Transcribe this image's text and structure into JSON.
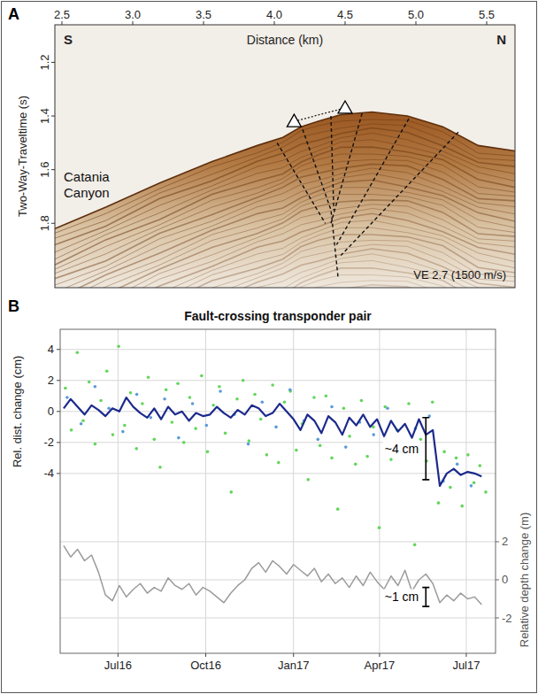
{
  "chart_data": [
    {
      "type": "image",
      "panel": "A",
      "x_label": "Distance (km)",
      "y_label": "Two-Way-Traveltime (s)",
      "xlim": [
        2.45,
        5.7
      ],
      "xticks": [
        2.5,
        {
          "value": 3,
          "label": "3.0"
        },
        3.5,
        {
          "value": 4,
          "label": "4.0"
        },
        4.5,
        {
          "value": 5,
          "label": "5.0"
        },
        5.5
      ],
      "ylim": [
        2.04,
        1.06
      ],
      "yticks": [
        1.2,
        1.4,
        1.6,
        1.8
      ],
      "seafloor": {
        "x": [
          2.45,
          2.81,
          3.19,
          3.56,
          3.88,
          4.06,
          4.19,
          4.31,
          4.47,
          4.69,
          4.94,
          5.19,
          5.44,
          5.7
        ],
        "y": [
          1.82,
          1.74,
          1.65,
          1.57,
          1.51,
          1.48,
          1.44,
          1.42,
          1.395,
          1.385,
          1.4,
          1.44,
          1.51,
          1.53
        ]
      },
      "faults": [
        {
          "x": [
            4.02,
            4.36
          ],
          "y": [
            1.5,
            1.8
          ]
        },
        {
          "x": [
            4.2,
            4.4,
            4.45
          ],
          "y": [
            1.45,
            1.75,
            2.0
          ]
        },
        {
          "x": [
            4.4,
            4.42
          ],
          "y": [
            1.4,
            1.75
          ]
        },
        {
          "x": [
            4.62,
            4.4
          ],
          "y": [
            1.39,
            1.8
          ]
        },
        {
          "x": [
            4.95,
            4.44
          ],
          "y": [
            1.41,
            1.88
          ]
        },
        {
          "x": [
            5.3,
            4.47
          ],
          "y": [
            1.46,
            1.92
          ]
        }
      ],
      "transponders": {
        "x": [
          4.14,
          4.5
        ],
        "y": [
          1.42,
          1.37
        ]
      },
      "labels": {
        "south": "S",
        "north": "N",
        "place": "Catania Canyon",
        "note": "VE 2.7 (1500 m/s)"
      }
    },
    {
      "type": "line",
      "panel": "B",
      "title": "Fault-crossing transponder pair",
      "y_label": "Rel. dist. change (cm)",
      "y2_label": "Relative depth change (m)",
      "xlim": [
        2016.33,
        2017.58
      ],
      "xticks": [
        {
          "value": 2016.496,
          "label": "Jul16"
        },
        {
          "value": 2016.748,
          "label": "Oct16"
        },
        {
          "value": 2017.0,
          "label": "Jan17"
        },
        {
          "value": 2017.247,
          "label": "Apr17"
        },
        {
          "value": 2017.496,
          "label": "Jul17"
        }
      ],
      "ylim": [
        -15.6,
        5.3
      ],
      "yticks": [
        -4,
        -2,
        0,
        2,
        4
      ],
      "y2lim": [
        -3.86,
        13.16
      ],
      "y2ticks": [
        -2,
        0,
        2
      ],
      "grid": true,
      "x": [
        2016.34,
        2016.36,
        2016.38,
        2016.4,
        2016.42,
        2016.44,
        2016.46,
        2016.48,
        2016.5,
        2016.52,
        2016.54,
        2016.56,
        2016.58,
        2016.6,
        2016.62,
        2016.64,
        2016.66,
        2016.68,
        2016.7,
        2016.72,
        2016.74,
        2016.76,
        2016.78,
        2016.8,
        2016.82,
        2016.84,
        2016.86,
        2016.88,
        2016.9,
        2016.92,
        2016.94,
        2016.96,
        2016.98,
        2017.0,
        2017.02,
        2017.04,
        2017.06,
        2017.08,
        2017.1,
        2017.12,
        2017.14,
        2017.16,
        2017.18,
        2017.2,
        2017.22,
        2017.24,
        2017.26,
        2017.28,
        2017.3,
        2017.32,
        2017.34,
        2017.36,
        2017.38,
        2017.4,
        2017.42,
        2017.44,
        2017.46,
        2017.48,
        2017.5,
        2017.52,
        2017.54
      ],
      "series": [
        {
          "type": "scatter",
          "color": "#62d65a",
          "marker": "dot",
          "x": [
            2016.345,
            2016.362,
            2016.379,
            2016.396,
            2016.413,
            2016.43,
            2016.447,
            2016.464,
            2016.481,
            2016.498,
            2016.515,
            2016.532,
            2016.549,
            2016.566,
            2016.583,
            2016.6,
            2016.617,
            2016.634,
            2016.651,
            2016.668,
            2016.685,
            2016.702,
            2016.719,
            2016.736,
            2016.753,
            2016.77,
            2016.787,
            2016.804,
            2016.821,
            2016.838,
            2016.855,
            2016.872,
            2016.889,
            2016.906,
            2016.923,
            2016.94,
            2016.957,
            2016.974,
            2016.991,
            2017.008,
            2017.025,
            2017.042,
            2017.059,
            2017.076,
            2017.093,
            2017.11,
            2017.127,
            2017.144,
            2017.161,
            2017.178,
            2017.195,
            2017.212,
            2017.229,
            2017.246,
            2017.263,
            2017.28,
            2017.297,
            2017.314,
            2017.331,
            2017.348,
            2017.365,
            2017.382,
            2017.399,
            2017.416,
            2017.433,
            2017.45,
            2017.467,
            2017.484,
            2017.501,
            2017.518,
            2017.535,
            2017.552
          ],
          "values": [
            1.5,
            -1.2,
            3.8,
            -0.6,
            1.9,
            -2.1,
            0.7,
            2.6,
            -1.5,
            4.2,
            -0.9,
            1.2,
            -2.4,
            0.5,
            2.2,
            -1.8,
            -3.6,
            1.4,
            -0.7,
            1.8,
            -2.0,
            0.9,
            -1.1,
            2.3,
            -2.6,
            0.4,
            1.6,
            -1.4,
            -5.2,
            0.8,
            2.0,
            -1.9,
            1.1,
            -0.5,
            -2.8,
            1.7,
            -3.3,
            0.6,
            1.3,
            -2.5,
            -0.8,
            -4.4,
            0.9,
            -2.2,
            1.0,
            -3.0,
            -6.3,
            0.2,
            -1.6,
            -3.4,
            0.7,
            -2.9,
            -1.0,
            -7.5,
            0.3,
            -3.1,
            -1.2,
            -2.7,
            0.5,
            -8.6,
            -1.8,
            -3.2,
            0.6,
            -5.9,
            -2.6,
            -4.9,
            -3.0,
            -6.1,
            -2.8,
            -4.6,
            -3.5,
            -5.2
          ]
        },
        {
          "type": "scatter",
          "color": "#5b9bd8",
          "marker": "dot",
          "x": [
            2016.35,
            2016.39,
            2016.43,
            2016.47,
            2016.51,
            2016.55,
            2016.59,
            2016.63,
            2016.67,
            2016.71,
            2016.75,
            2016.79,
            2016.83,
            2016.87,
            2016.91,
            2016.95,
            2016.99,
            2017.03,
            2017.07,
            2017.11,
            2017.15,
            2017.19,
            2017.23,
            2017.27,
            2017.31,
            2017.35,
            2017.39,
            2017.43,
            2017.47,
            2017.51
          ],
          "values": [
            0.9,
            -0.8,
            1.6,
            0.2,
            -1.3,
            1.1,
            -0.4,
            0.8,
            -1.7,
            0.5,
            -0.9,
            1.3,
            -0.2,
            -2.1,
            0.6,
            -1.0,
            1.4,
            -0.6,
            -1.8,
            0.3,
            -2.3,
            -0.7,
            -1.5,
            0.2,
            -2.6,
            -1.1,
            -0.3,
            -4.5,
            -3.4,
            -4.8
          ]
        },
        {
          "type": "line",
          "color": "#1c2a8c",
          "values": [
            0.2,
            0.8,
            0.3,
            -0.2,
            0.4,
            0.1,
            -0.3,
            0.2,
            0.0,
            0.9,
            0.3,
            -0.1,
            -0.4,
            0.2,
            -0.5,
            0.3,
            -0.2,
            0.0,
            -0.6,
            -0.1,
            -0.3,
            -0.2,
            0.3,
            -0.1,
            -0.4,
            0.1,
            -0.2,
            0.4,
            0.2,
            -0.3,
            -0.1,
            0.5,
            0.0,
            -0.5,
            -1.2,
            -0.2,
            -0.6,
            -1.4,
            -0.3,
            -0.7,
            -1.5,
            -0.4,
            -0.9,
            -0.2,
            -1.0,
            -0.5,
            -1.6,
            -0.6,
            -1.3,
            -0.8,
            -1.7,
            -0.5,
            -1.5,
            -1.2,
            -4.8,
            -4.0,
            -3.7,
            -4.1,
            -3.9,
            -4.0,
            -4.2
          ]
        },
        {
          "type": "line",
          "color": "#9b9b9b",
          "axis": "y2",
          "values": [
            1.8,
            1.2,
            1.6,
            1.0,
            1.3,
            0.4,
            -0.8,
            -1.1,
            -0.3,
            -0.9,
            -0.5,
            -0.2,
            -0.7,
            -0.4,
            -0.6,
            0.1,
            -0.3,
            -0.5,
            -0.2,
            -0.8,
            -0.4,
            -0.6,
            -0.9,
            -1.2,
            -0.7,
            -0.3,
            0.0,
            0.6,
            0.9,
            0.4,
            1.0,
            0.7,
            0.3,
            0.8,
            0.5,
            0.2,
            0.6,
            -0.1,
            0.3,
            -0.2,
            0.1,
            -0.4,
            0.2,
            -0.3,
            0.4,
            -0.1,
            -0.5,
            0.2,
            -0.3,
            0.5,
            -0.6,
            0.0,
            0.3,
            -0.2,
            -1.2,
            -0.8,
            -1.1,
            -0.7,
            -1.0,
            -0.9,
            -1.3
          ]
        }
      ],
      "annotations": [
        {
          "text": "~4 cm",
          "x": 2017.38,
          "y": [
            -0.4,
            -4.4
          ]
        },
        {
          "text": "~1 cm",
          "x": 2017.38,
          "y": [
            -0.4,
            -1.4
          ],
          "axis": "y2"
        }
      ]
    }
  ]
}
